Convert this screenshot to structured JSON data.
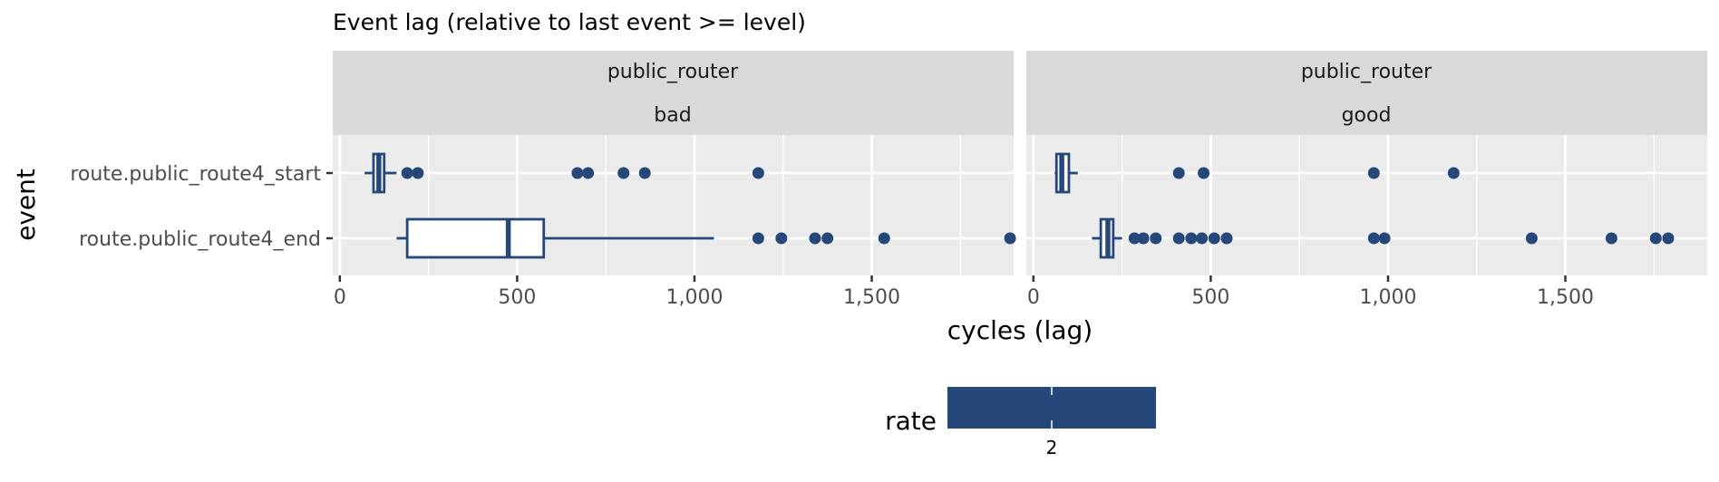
{
  "chart_data": {
    "type": "boxplot",
    "title": "Event lag (relative to last event >= level)",
    "xlabel": "cycles (lag)",
    "ylabel": "event",
    "xlim": [
      -20,
      1900
    ],
    "x_ticks": [
      0,
      500,
      1000,
      1500
    ],
    "x_tick_labels": [
      "0",
      "500",
      "1,000",
      "1,500"
    ],
    "categories": [
      "route.public_route4_start",
      "route.public_route4_end"
    ],
    "grid": true,
    "box_color": "#26477a",
    "panel_bg": "#ebebeb",
    "strip_bg": "#d9d9d9",
    "facets": [
      {
        "strip": [
          "public_router",
          "bad"
        ],
        "boxes": [
          {
            "category": "route.public_route4_start",
            "whisker_low": 70,
            "q1": 95,
            "median": 110,
            "q3": 125,
            "whisker_high": 160,
            "outliers": [
              190,
              220,
              670,
              700,
              800,
              860,
              1180
            ]
          },
          {
            "category": "route.public_route4_end",
            "whisker_low": 160,
            "q1": 190,
            "median": 475,
            "q3": 575,
            "whisker_high": 1055,
            "outliers": [
              1180,
              1245,
              1340,
              1375,
              1535,
              1890
            ]
          }
        ]
      },
      {
        "strip": [
          "public_router",
          "good"
        ],
        "boxes": [
          {
            "category": "route.public_route4_start",
            "whisker_low": 60,
            "q1": 65,
            "median": 80,
            "q3": 100,
            "whisker_high": 125,
            "outliers": [
              410,
              480,
              960,
              1185
            ]
          },
          {
            "category": "route.public_route4_end",
            "whisker_low": 165,
            "q1": 190,
            "median": 210,
            "q3": 225,
            "whisker_high": 250,
            "outliers": [
              285,
              310,
              345,
              410,
              445,
              475,
              510,
              545,
              960,
              990,
              1405,
              1630,
              1755,
              1790
            ]
          }
        ]
      }
    ],
    "legend": {
      "title": "rate",
      "placement": "bottom",
      "labels": [
        "2"
      ],
      "color": "#26477a"
    }
  }
}
